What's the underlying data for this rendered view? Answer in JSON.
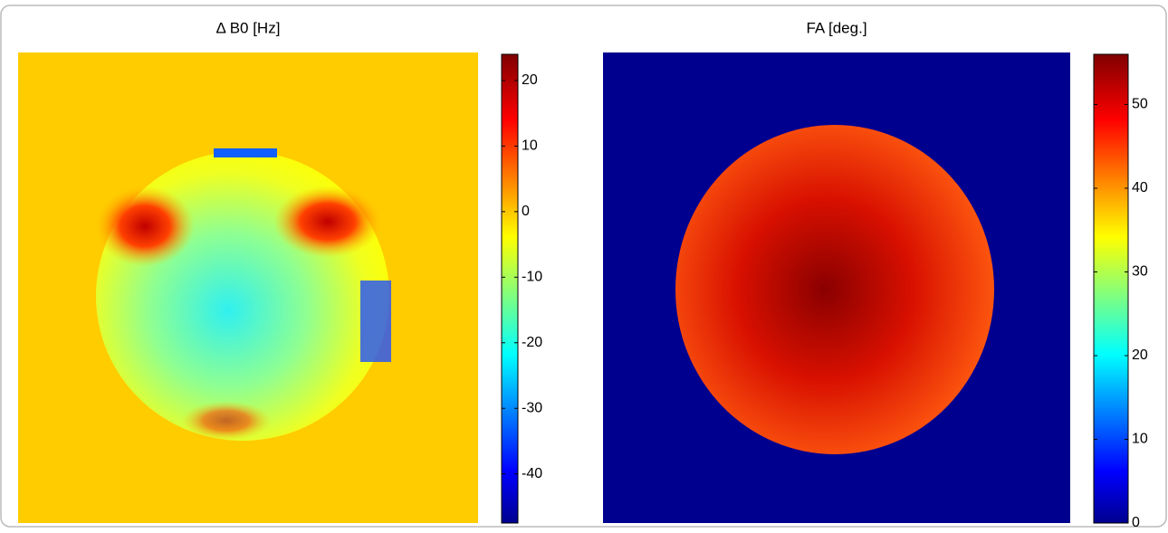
{
  "chart_data": [
    {
      "type": "colormap",
      "title": "Δ B0 [Hz]",
      "clim": [
        -47.5,
        24
      ],
      "cticks": [
        -40,
        -30,
        -20,
        -10,
        0,
        10,
        20
      ]
    },
    {
      "type": "colormap",
      "title": "FA [deg.]",
      "clim": [
        0,
        56
      ],
      "cticks": [
        0,
        10,
        20,
        30,
        40,
        50
      ]
    }
  ]
}
